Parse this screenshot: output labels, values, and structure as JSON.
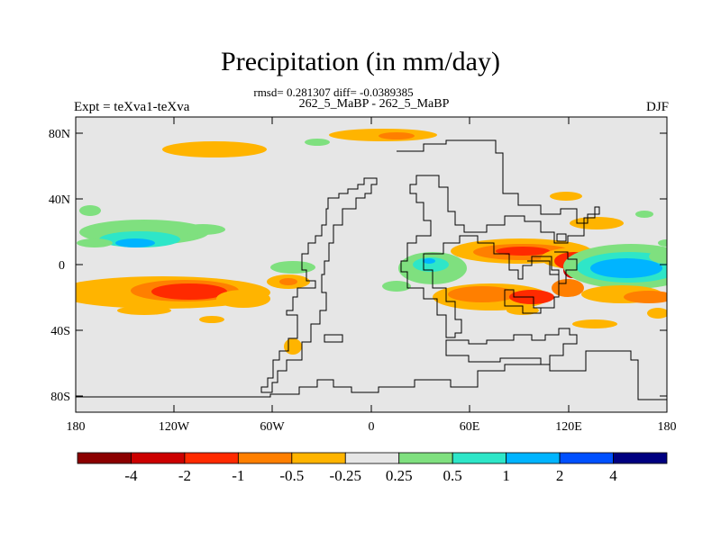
{
  "header": {
    "title": "Precipitation (in mm/day)",
    "stats": "rmsd= 0.281307 diff= -0.0389385",
    "case_names": "262_5_MaBP - 262_5_MaBP",
    "experiment": "Expt = teXva1-teXva",
    "season": "DJF"
  },
  "axes": {
    "lat_ticks": [
      "80N",
      "40N",
      "0",
      "40S",
      "80S"
    ],
    "lon_ticks": [
      "180",
      "120W",
      "60W",
      "0",
      "60E",
      "120E",
      "180"
    ]
  },
  "colorbar": {
    "colors": [
      "#8b0000",
      "#cc0000",
      "#ff2a00",
      "#ff7f00",
      "#ffb400",
      "#e6e6e6",
      "#7fe07f",
      "#2ee6c8",
      "#00b4ff",
      "#0050ff",
      "#000080"
    ],
    "labels": [
      "-4",
      "-2",
      "-1",
      "-0.5",
      "-0.25",
      "0.25",
      "0.5",
      "1",
      "2",
      "4"
    ]
  },
  "map": {
    "background_color": "#e6e6e6",
    "coastline_color": "#000000"
  }
}
